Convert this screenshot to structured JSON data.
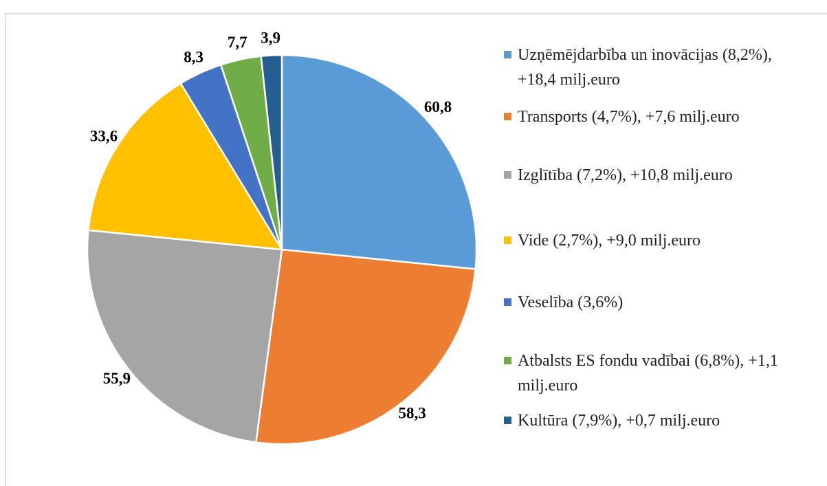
{
  "chart_data": {
    "type": "pie",
    "categories": [
      "Uzņēmējdarbība un inovācijas (8,2%), +18,4 milj.euro",
      "Transports (4,7%), +7,6 milj.euro",
      "Izglītība (7,2%), +10,8 milj.euro",
      "Vide (2,7%), +9,0 milj.euro",
      "Veselība (3,6%)",
      "Atbalsts ES fondu vadībai (6,8%), +1,1 milj.euro",
      "Kultūra (7,9%), +0,7 milj.euro"
    ],
    "values": [
      60.8,
      58.3,
      55.9,
      33.6,
      8.3,
      7.7,
      3.9
    ],
    "value_labels": [
      "60,8",
      "58,3",
      "55,9",
      "33,6",
      "8,3",
      "7,7",
      "3,9"
    ],
    "colors": [
      "#5b9bd5",
      "#ed7d31",
      "#a5a5a5",
      "#ffc000",
      "#4472c4",
      "#70ad47",
      "#255e91"
    ],
    "legend": "right"
  }
}
